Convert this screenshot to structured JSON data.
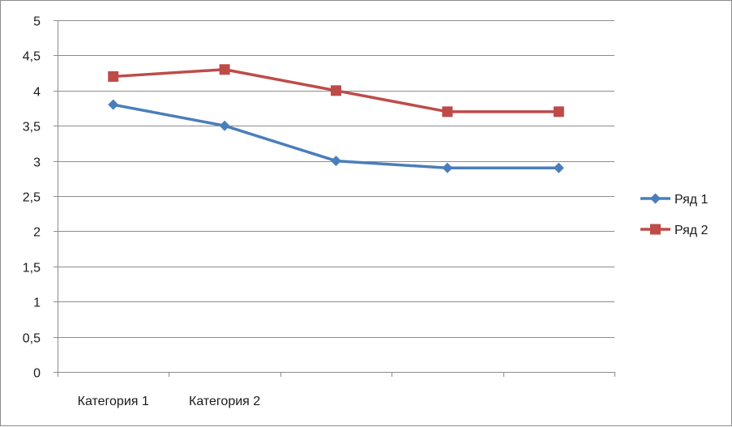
{
  "chart_data": {
    "type": "line",
    "categories": [
      "Категория 1",
      "Категория 2",
      "",
      "",
      ""
    ],
    "ylim": [
      0,
      5
    ],
    "ytick_labels": [
      "0",
      "0,5",
      "1",
      "1,5",
      "2",
      "2,5",
      "3",
      "3,5",
      "4",
      "4,5",
      "5"
    ],
    "grid": true,
    "legend_position": "right",
    "series": [
      {
        "name": "Ряд 1",
        "values": [
          3.8,
          3.5,
          3.0,
          2.9,
          2.9
        ],
        "color": "#4a7ebb",
        "marker": "diamond"
      },
      {
        "name": "Ряд 2",
        "values": [
          4.2,
          4.3,
          4.0,
          3.7,
          3.7
        ],
        "color": "#be4b48",
        "marker": "square"
      }
    ]
  }
}
